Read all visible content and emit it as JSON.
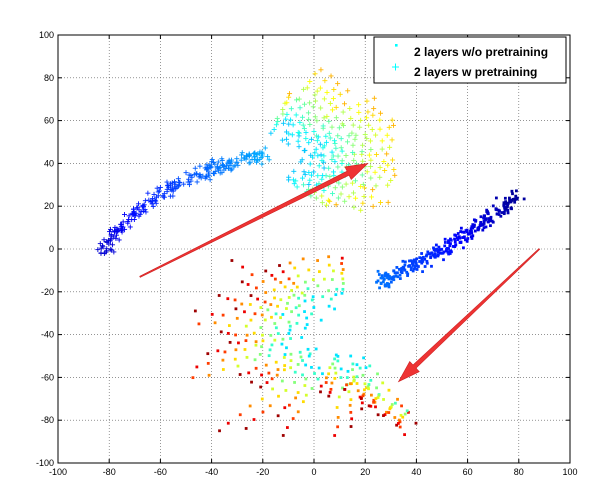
{
  "chart_data": {
    "type": "scatter",
    "title": "",
    "xlabel": "",
    "ylabel": "",
    "xlim": [
      -100,
      100
    ],
    "ylim": [
      -100,
      100
    ],
    "xticks": [
      -100,
      -80,
      -60,
      -40,
      -20,
      0,
      20,
      40,
      60,
      80,
      100
    ],
    "yticks": [
      -100,
      -80,
      -60,
      -40,
      -20,
      0,
      20,
      40,
      60,
      80,
      100
    ],
    "grid": true,
    "grid_style": "dotted",
    "colormap": "jet",
    "legend": {
      "position": "top-right",
      "entries": [
        {
          "label": "2 layers w/o pretraining",
          "marker": "dot",
          "color": "#00ffff"
        },
        {
          "label": "2 layers w pretraining",
          "marker": "plus",
          "color": "#00ffff"
        }
      ]
    },
    "series": [
      {
        "name": "2 layers w/o pretraining",
        "marker": "dot",
        "description_of_trajectory": "clusters start dark blue near (80, 25) and fan out to the lower-left ending in red near (-40, -60) and (30, -75)",
        "anchor_points": [
          {
            "x": 80,
            "y": 25
          },
          {
            "x": 60,
            "y": 10
          },
          {
            "x": 40,
            "y": -5
          },
          {
            "x": 20,
            "y": -20
          },
          {
            "x": 0,
            "y": -35
          },
          {
            "x": -20,
            "y": -50
          },
          {
            "x": -40,
            "y": -60
          }
        ]
      },
      {
        "name": "2 layers w pretraining",
        "marker": "plus",
        "description_of_trajectory": "clusters start dark blue near (-82, 0) and arc up/right to yellow-green clusters near (10..30, 40..80)",
        "anchor_points": [
          {
            "x": -82,
            "y": 0
          },
          {
            "x": -70,
            "y": 15
          },
          {
            "x": -55,
            "y": 28
          },
          {
            "x": -40,
            "y": 38
          },
          {
            "x": -25,
            "y": 45
          },
          {
            "x": -10,
            "y": 50
          },
          {
            "x": 10,
            "y": 55
          },
          {
            "x": 25,
            "y": 60
          }
        ]
      }
    ],
    "arrows": [
      {
        "from": [
          -68,
          -13
        ],
        "to": [
          21,
          40
        ],
        "color": "#ee3333"
      },
      {
        "from": [
          88,
          0
        ],
        "to": [
          33,
          -62
        ],
        "color": "#ee3333"
      }
    ]
  }
}
